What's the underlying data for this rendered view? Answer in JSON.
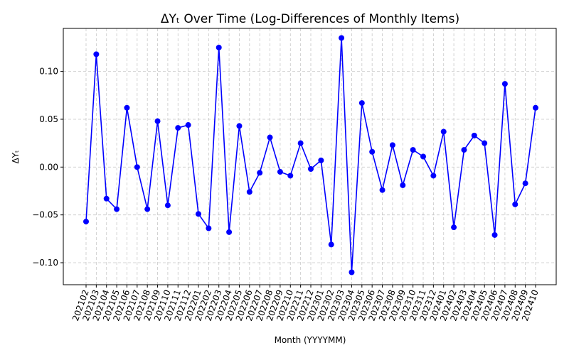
{
  "chart_data": {
    "type": "line",
    "title": "ΔYₜ Over Time (Log-Differences of Monthly Items)",
    "xlabel": "Month (YYYYMM)",
    "ylabel": "ΔYₜ",
    "ylim": [
      -0.123,
      0.145
    ],
    "yticks": [
      "0.10",
      "0.05",
      "0.00",
      "−0.05",
      "−0.10"
    ],
    "ytick_values": [
      0.1,
      0.05,
      0.0,
      -0.05,
      -0.1
    ],
    "grid": true,
    "line_color": "#0000ff",
    "x": [
      "202102",
      "202103",
      "202104",
      "202105",
      "202106",
      "202107",
      "202108",
      "202109",
      "202110",
      "202111",
      "202112",
      "202201",
      "202202",
      "202203",
      "202204",
      "202205",
      "202206",
      "202207",
      "202208",
      "202209",
      "202210",
      "202211",
      "202212",
      "202301",
      "202302",
      "202303",
      "202304",
      "202305",
      "202306",
      "202307",
      "202308",
      "202309",
      "202310",
      "202311",
      "202312",
      "202401",
      "202402",
      "202403",
      "202404",
      "202405",
      "202406",
      "202407",
      "202408",
      "202409",
      "202410"
    ],
    "values": [
      -0.057,
      0.118,
      -0.033,
      -0.044,
      0.062,
      0.0,
      -0.044,
      0.048,
      -0.04,
      0.041,
      0.044,
      -0.049,
      -0.064,
      0.125,
      -0.068,
      0.043,
      -0.026,
      -0.006,
      0.031,
      -0.005,
      -0.009,
      0.025,
      -0.002,
      0.007,
      -0.081,
      0.135,
      -0.11,
      0.067,
      0.016,
      -0.024,
      0.023,
      -0.019,
      0.018,
      0.011,
      -0.009,
      0.037,
      -0.063,
      0.018,
      0.033,
      0.025,
      -0.071,
      0.087,
      -0.039,
      -0.017,
      0.062
    ]
  }
}
